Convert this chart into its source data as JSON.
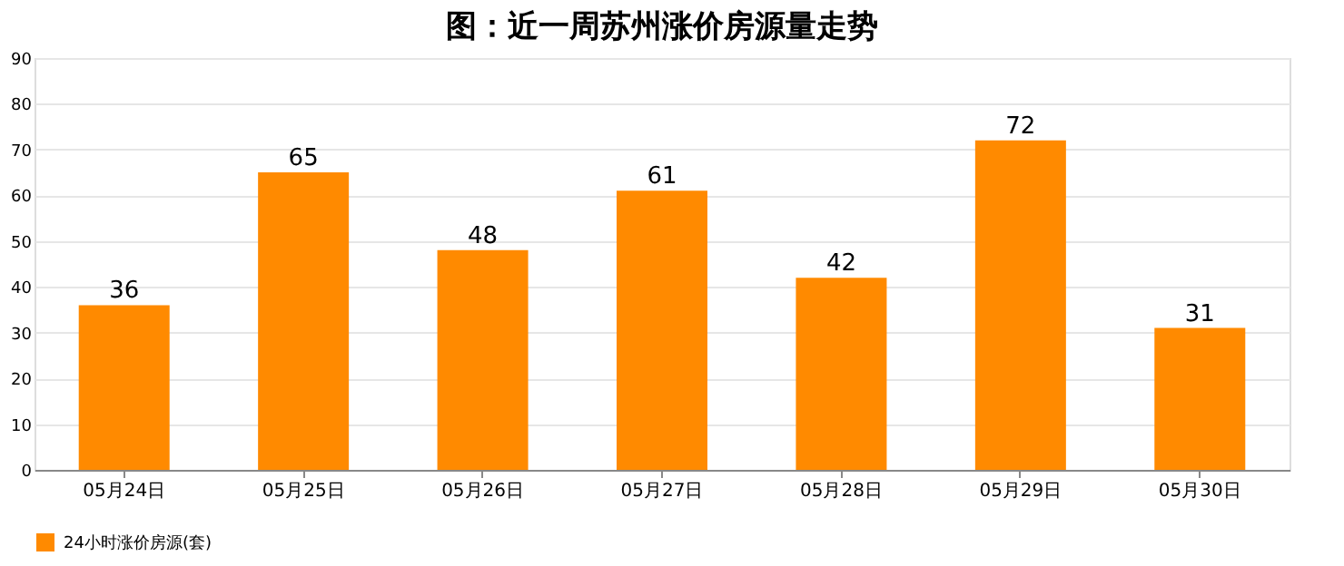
{
  "chart_data": {
    "type": "bar",
    "title": "图：近一周苏州涨价房源量走势",
    "categories": [
      "05月24日",
      "05月25日",
      "05月26日",
      "05月27日",
      "05月28日",
      "05月29日",
      "05月30日"
    ],
    "series": [
      {
        "name": "24小时涨价房源(套)",
        "color": "#ff8a00",
        "values": [
          36,
          65,
          48,
          61,
          42,
          72,
          31
        ]
      }
    ],
    "ylim": [
      0,
      90
    ],
    "yticks": [
      0,
      10,
      20,
      30,
      40,
      50,
      60,
      70,
      80,
      90
    ],
    "grid": "y",
    "legend": "bottom",
    "data_labels": true
  }
}
